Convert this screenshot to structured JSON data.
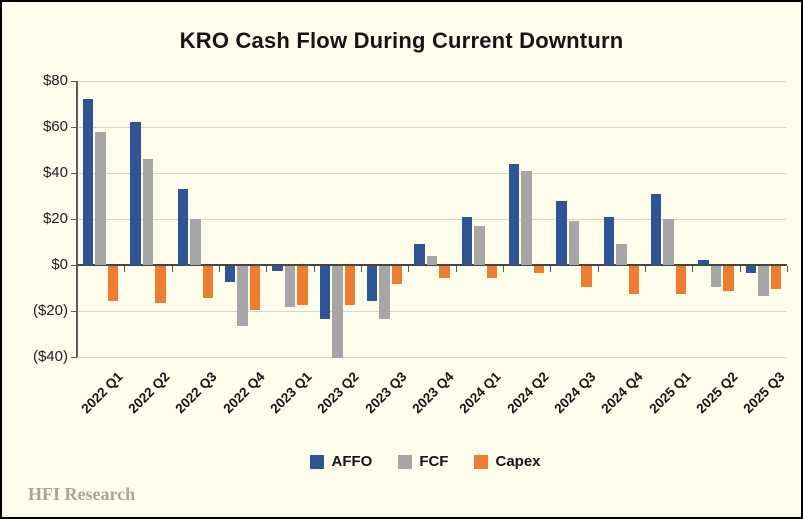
{
  "chart_data": {
    "type": "bar",
    "title": "KRO Cash Flow During Current Downturn",
    "categories": [
      "2022 Q1",
      "2022 Q2",
      "2022 Q3",
      "2022 Q4",
      "2023 Q1",
      "2023 Q2",
      "2023 Q3",
      "2023 Q4",
      "2024 Q1",
      "2024 Q2",
      "2024 Q3",
      "2024 Q4",
      "2025 Q1",
      "2025 Q2",
      "2025 Q3"
    ],
    "series": [
      {
        "name": "AFFO",
        "color": "#2F5597",
        "values": [
          72,
          62,
          33,
          -7,
          -2,
          -23,
          -15,
          9,
          21,
          44,
          28,
          21,
          31,
          2,
          -3
        ]
      },
      {
        "name": "FCF",
        "color": "#A6A6A6",
        "values": [
          58,
          46,
          20,
          -26,
          -18,
          -40,
          -23,
          4,
          17,
          41,
          19,
          9,
          20,
          -9,
          -13
        ]
      },
      {
        "name": "Capex",
        "color": "#ED7D31",
        "values": [
          -15,
          -16,
          -14,
          -19,
          -17,
          -17,
          -8,
          -5,
          -5,
          -3,
          -9,
          -12,
          -12,
          -11,
          -10
        ]
      }
    ],
    "ylim": [
      -40,
      80
    ],
    "y_ticks": [
      {
        "value": 80,
        "label": "$80"
      },
      {
        "value": 60,
        "label": "$60"
      },
      {
        "value": 40,
        "label": "$40"
      },
      {
        "value": 20,
        "label": "$20"
      },
      {
        "value": 0,
        "label": "$0"
      },
      {
        "value": -20,
        "label": "($20)"
      },
      {
        "value": -40,
        "label": "($40)"
      }
    ],
    "grid": true,
    "legend_position": "bottom"
  },
  "footer": {
    "brand": "HFI Research"
  },
  "colors": {
    "background": "#FEFCEA",
    "frame_border": "#000000",
    "gridline": "#D8D6CA",
    "zero_line": "#454545",
    "axis_line": "#5a5a5a",
    "affo": "#2F5597",
    "fcf": "#A6A6A6",
    "capex": "#ED7D31",
    "footer_text": "#A8A69C"
  }
}
